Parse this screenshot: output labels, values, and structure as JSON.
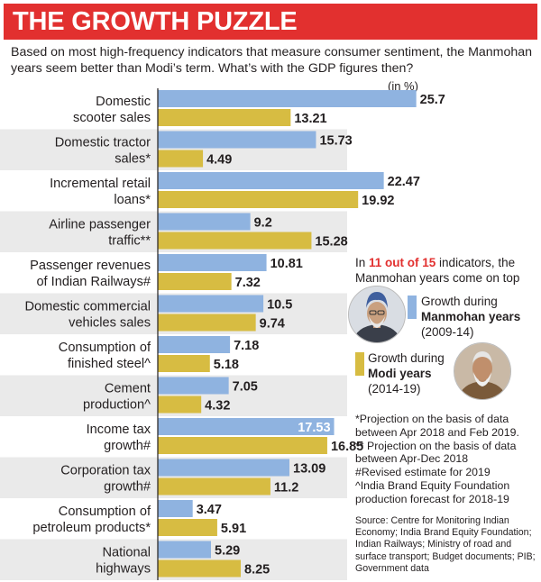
{
  "header": {
    "title": "THE GROWTH PUZZLE",
    "subtitle": "Based on most high-frequency indicators that measure consumer sentiment, the Manmohan years seem better than Modi’s term. What’s with the GDP figures then?",
    "unit": "(in %)"
  },
  "colors": {
    "accent": "#e2302f",
    "manmohan": "#8fb3e0",
    "modi": "#d7bc42",
    "band": "#eaeaea"
  },
  "note": {
    "prefix": "In ",
    "highlight": "11 out of 15",
    "suffix": " indicators, the Manmohan years come on top"
  },
  "legend": {
    "manmohan": {
      "line1": "Growth during",
      "bold": "Manmohan years",
      "period": "(2009-14)",
      "icon": "manmohan-singh-portrait"
    },
    "modi": {
      "line1": "Growth during",
      "bold": "Modi years",
      "period": "(2014-19)",
      "icon": "narendra-modi-portrait"
    }
  },
  "footnotes": [
    "*Projection on the basis of data between Apr 2018 and Feb 2019.",
    "** Projection on the basis of data between Apr-Dec 2018",
    "#Revised estimate for 2019",
    "^India Brand Equity Foundation production forecast for 2018-19"
  ],
  "source": "Source: Centre for Monitoring Indian Economy; India Brand Equity Foundation; Indian Railways; Ministry of road and surface transport; Budget documents; PIB; Government data",
  "chart_data": {
    "type": "bar",
    "orientation": "horizontal",
    "title": "THE GROWTH PUZZLE",
    "unit": "(in %)",
    "categories": [
      [
        "Domestic",
        "scooter sales"
      ],
      [
        "Domestic tractor",
        "sales*"
      ],
      [
        "Incremental retail",
        "loans*"
      ],
      [
        "Airline passenger",
        "traffic**"
      ],
      [
        "Passenger revenues",
        "of Indian Railways#"
      ],
      [
        "Domestic commercial",
        "vehicles sales"
      ],
      [
        "Consumption of",
        "finished steel^"
      ],
      [
        "Cement",
        "production^"
      ],
      [
        "Income tax",
        "growth#"
      ],
      [
        "Corporation tax",
        "growth#"
      ],
      [
        "Consumption of",
        "petroleum products*"
      ],
      [
        "National",
        "highways"
      ]
    ],
    "series": [
      {
        "name": "Growth during Manmohan years (2009-14)",
        "color": "#8fb3e0",
        "values": [
          25.7,
          15.73,
          22.47,
          9.2,
          10.81,
          10.5,
          7.18,
          7.05,
          17.53,
          13.09,
          3.47,
          5.29
        ]
      },
      {
        "name": "Growth during Modi years (2014-19)",
        "color": "#d7bc42",
        "values": [
          13.21,
          4.49,
          19.92,
          15.28,
          7.32,
          9.74,
          5.18,
          4.32,
          16.85,
          11.2,
          5.91,
          8.25
        ]
      }
    ],
    "value_labels_inside": [
      8
    ],
    "xlim": [
      0,
      26
    ],
    "legend": "right",
    "grid": false
  }
}
